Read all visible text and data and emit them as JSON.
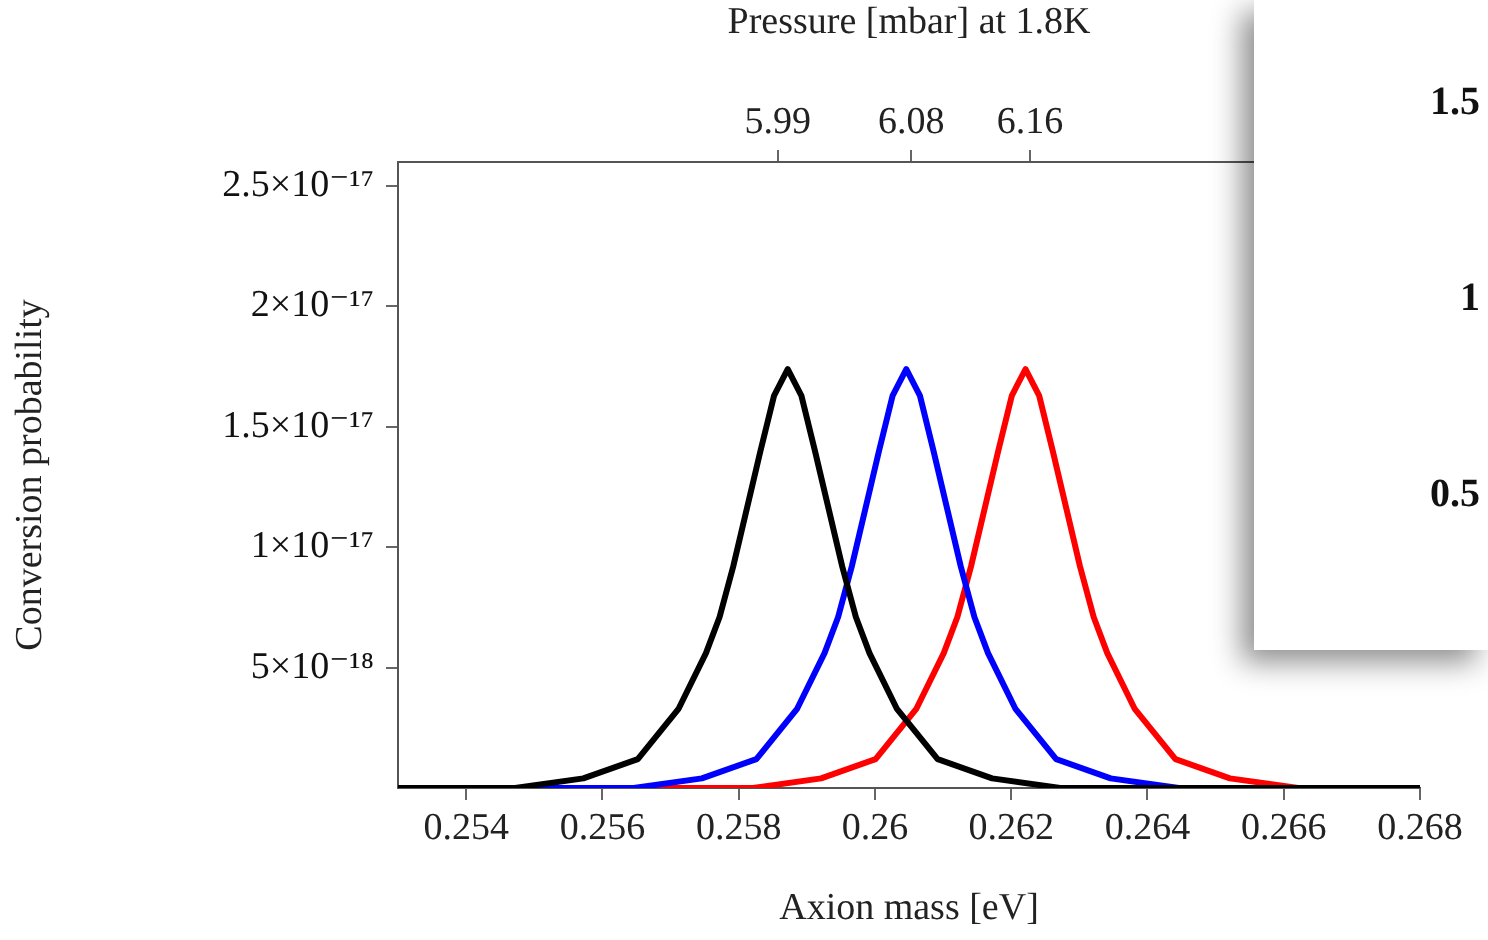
{
  "chart_data": [
    {
      "type": "line",
      "xlabel": "Axion mass [eV]",
      "ylabel": "Conversion probability",
      "x2label": "Pressure [mbar] at 1.8K",
      "xlim": [
        0.253,
        0.268
      ],
      "xticks": [
        0.254,
        0.256,
        0.258,
        0.26,
        0.262,
        0.264,
        0.266,
        0.268
      ],
      "x2lim": [
        5.734,
        6.423
      ],
      "x2ticks": [
        5.99,
        6.08,
        6.16
      ],
      "ylim": [
        0,
        2.6e-17
      ],
      "yticks": [
        {
          "value": 5e-18,
          "label": "5×10⁻¹⁸"
        },
        {
          "value": 1e-17,
          "label": "1×10⁻¹⁷"
        },
        {
          "value": 1.5e-17,
          "label": "1.5×10⁻¹⁷"
        },
        {
          "value": 2e-17,
          "label": "2×10⁻¹⁷"
        },
        {
          "value": 2.5e-17,
          "label": "2.5×10⁻¹⁷"
        }
      ],
      "grid": false,
      "marker": "none",
      "series": [
        {
          "color": "#000000",
          "x": [
            0.253,
            0.25472,
            0.25572,
            0.25652,
            0.25712,
            0.25752,
            0.25772,
            0.25792,
            0.25832,
            0.25852,
            0.25872,
            0.25892,
            0.25912,
            0.25952,
            0.25972,
            0.25992,
            0.26032,
            0.26092,
            0.26172,
            0.26272,
            0.26472,
            0.268
          ],
          "values": [
            0,
            0,
            4e-19,
            1.2e-18,
            3.3e-18,
            5.6e-18,
            7.1e-18,
            9.2e-18,
            1.4e-17,
            1.63e-17,
            1.74e-17,
            1.63e-17,
            1.4e-17,
            9.2e-18,
            7.1e-18,
            5.6e-18,
            3.3e-18,
            1.2e-18,
            4e-19,
            0,
            0,
            0
          ]
        },
        {
          "color": "#0000ff",
          "x": [
            0.253,
            0.25446,
            0.25646,
            0.25746,
            0.25826,
            0.25886,
            0.25926,
            0.25946,
            0.25966,
            0.26006,
            0.26026,
            0.26046,
            0.26066,
            0.26086,
            0.26126,
            0.26146,
            0.26166,
            0.26206,
            0.26266,
            0.26346,
            0.26446,
            0.26646,
            0.268
          ],
          "values": [
            0,
            0,
            0,
            4e-19,
            1.2e-18,
            3.3e-18,
            5.6e-18,
            7.1e-18,
            9.2e-18,
            1.4e-17,
            1.63e-17,
            1.74e-17,
            1.63e-17,
            1.4e-17,
            9.2e-18,
            7.1e-18,
            5.6e-18,
            3.3e-18,
            1.2e-18,
            4e-19,
            0,
            0,
            0
          ]
        },
        {
          "color": "#ff0000",
          "x": [
            0.253,
            0.25621,
            0.25821,
            0.25921,
            0.26001,
            0.26061,
            0.26101,
            0.26121,
            0.26141,
            0.26181,
            0.26201,
            0.26221,
            0.26241,
            0.26261,
            0.26301,
            0.26321,
            0.26341,
            0.26381,
            0.26441,
            0.26521,
            0.26621,
            0.268
          ],
          "values": [
            0,
            0,
            0,
            4e-19,
            1.2e-18,
            3.3e-18,
            5.6e-18,
            7.1e-18,
            9.2e-18,
            1.4e-17,
            1.63e-17,
            1.74e-17,
            1.63e-17,
            1.4e-17,
            9.2e-18,
            7.1e-18,
            5.6e-18,
            3.3e-18,
            1.2e-18,
            4e-19,
            0,
            0
          ]
        }
      ]
    },
    {
      "type": "other",
      "annotations": [
        "1.5",
        "1",
        "0.5"
      ]
    }
  ]
}
